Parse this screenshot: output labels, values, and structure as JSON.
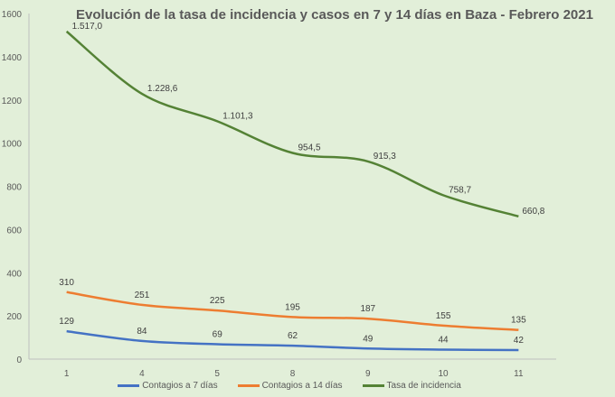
{
  "chart_data": {
    "type": "line",
    "title": "Evolución de la tasa de incidencia y casos en 7 y 14 días en Baza - Febrero 2021",
    "categories": [
      "1",
      "4",
      "5",
      "8",
      "9",
      "10",
      "11"
    ],
    "xlabel": "",
    "ylabel": "",
    "ylim": [
      0,
      1600
    ],
    "yticks": [
      0,
      200,
      400,
      600,
      800,
      1000,
      1200,
      1400,
      1600
    ],
    "grid": false,
    "legend_position": "bottom",
    "series": [
      {
        "name": "Contagios a 7 días",
        "color": "#4472c4",
        "values": [
          129,
          84,
          69,
          62,
          49,
          44,
          42
        ],
        "labels": [
          "129",
          "84",
          "69",
          "62",
          "49",
          "44",
          "42"
        ]
      },
      {
        "name": "Contagios a 14 días",
        "color": "#ed7d31",
        "values": [
          310,
          251,
          225,
          195,
          187,
          155,
          135
        ],
        "labels": [
          "310",
          "251",
          "225",
          "195",
          "187",
          "155",
          "135"
        ]
      },
      {
        "name": "Tasa de incidencia",
        "color": "#548235",
        "values": [
          1517.0,
          1228.6,
          1101.3,
          954.5,
          915.3,
          758.7,
          660.8
        ],
        "labels": [
          "1.517,0",
          "1.228,6",
          "1.101,3",
          "954,5",
          "915,3",
          "758,7",
          "660,8"
        ]
      }
    ]
  }
}
